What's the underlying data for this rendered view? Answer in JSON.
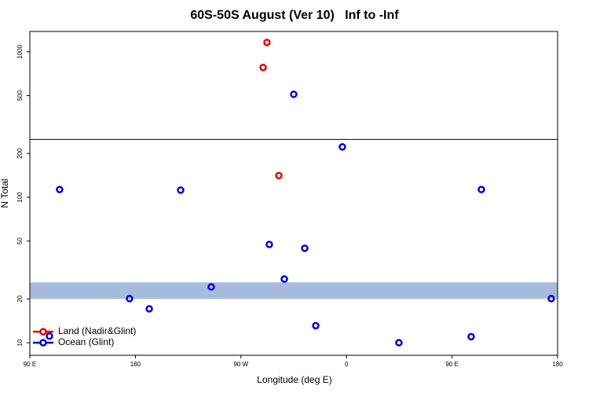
{
  "chart_data": {
    "type": "scatter",
    "title": "60S-50S August (Ver 10)   Inf to -Inf",
    "xlabel": "Longitude (deg E)",
    "ylabel": "N Total",
    "xlim": [
      90,
      540
    ],
    "xticks": [
      {
        "value": 90,
        "label": "90 E"
      },
      {
        "value": 180,
        "label": "180"
      },
      {
        "value": 270,
        "label": "90 W"
      },
      {
        "value": 360,
        "label": "0"
      },
      {
        "value": 450,
        "label": "90 E"
      },
      {
        "value": 540,
        "label": "180"
      }
    ],
    "ylim": [
      8.2,
      1380
    ],
    "ylog": true,
    "yticks": [
      10,
      20,
      50,
      100,
      200,
      500,
      1000
    ],
    "reference_band": [
      20,
      26
    ],
    "band_color": "#a7bcdc",
    "reference_line": 250,
    "legend": "bottom-left",
    "series": [
      {
        "name": "Land (Nadir&Glint)",
        "color": "#ee0000",
        "x": [
          292.2,
          288.9,
          302.3
        ],
        "values": [
          1160,
          780,
          141
        ]
      },
      {
        "name": "Ocean (Glint)",
        "color": "#0000dd",
        "x": [
          315,
          356.5,
          115.4,
          218.6,
          475,
          294.2,
          324.4,
          307,
          244.7,
          175,
          191.8,
          534.6,
          333.8,
          404.7,
          466.3,
          106.7
        ],
        "values": [
          510,
          222,
          113,
          112,
          113,
          47.4,
          44.6,
          27.4,
          24.2,
          20.1,
          17.1,
          20.1,
          13.1,
          10,
          11,
          11.1
        ]
      }
    ]
  }
}
